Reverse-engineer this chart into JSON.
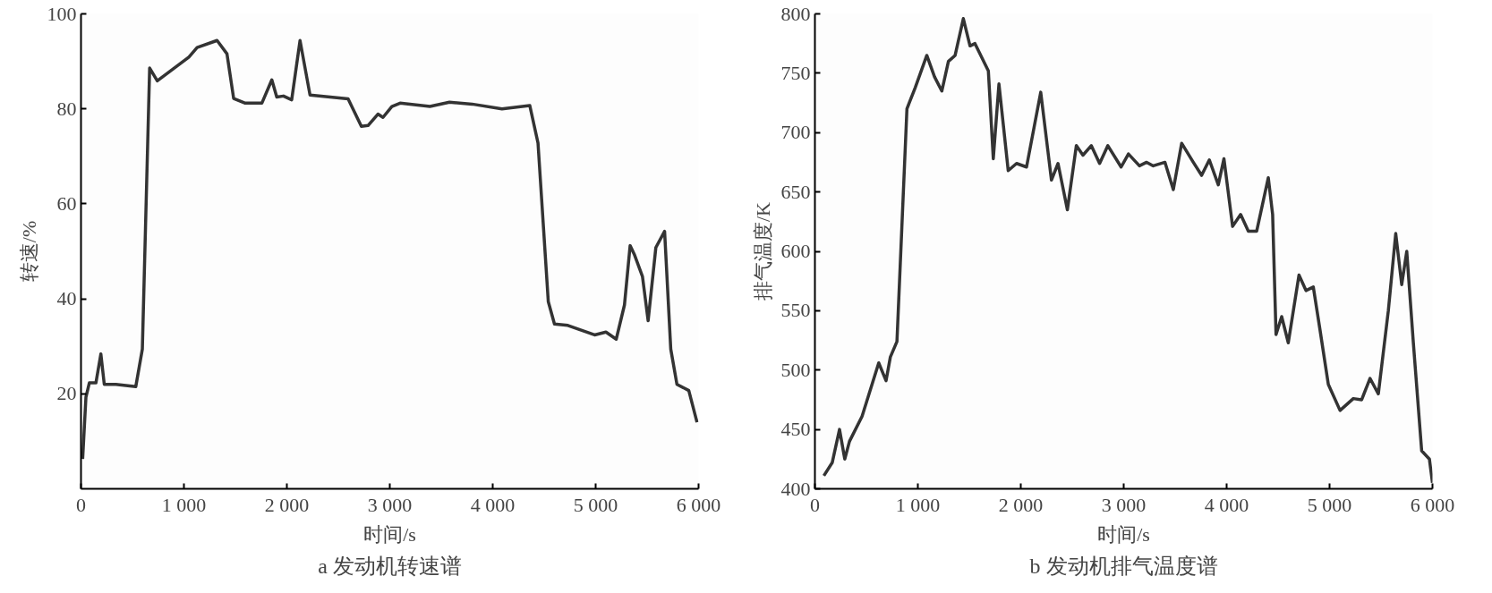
{
  "chart_data": [
    {
      "type": "line",
      "xlabel": "时间/s",
      "ylabel": "转速/%",
      "annotations": [
        "a 发动机转速谱"
      ],
      "xlim": [
        0,
        6000
      ],
      "ylim": [
        0,
        100
      ],
      "xticks": [
        0,
        {
          "value": 1000,
          "label": "1 000"
        },
        {
          "value": 2000,
          "label": "2 000"
        },
        {
          "value": 3000,
          "label": "3 000"
        },
        {
          "value": 4000,
          "label": "4 000"
        },
        {
          "value": 5000,
          "label": "5 000"
        },
        {
          "value": 6000,
          "label": "6 000"
        }
      ],
      "yticks": [
        20,
        40,
        60,
        80,
        100
      ],
      "grid": false,
      "marker": "none",
      "line_style": "solid",
      "series": [
        {
          "color": "#333333",
          "x": [
            16,
            48,
            81,
            145,
            193,
            226,
            339,
            532,
            596,
            667,
            741,
            1048,
            1128,
            1322,
            1418,
            1483,
            1596,
            1757,
            1854,
            1902,
            1967,
            2047,
            2128,
            2225,
            2595,
            2724,
            2789,
            2885,
            2934,
            3020,
            3100,
            3390,
            3580,
            3800,
            4090,
            4360,
            4440,
            4540,
            4600,
            4730,
            4990,
            5100,
            5200,
            5280,
            5335,
            5375,
            5455,
            5510,
            5585,
            5670,
            5730,
            5790,
            5905,
            5985
          ],
          "values": [
            6.3,
            19.3,
            22.3,
            22.3,
            28.4,
            22,
            22,
            21.5,
            29.4,
            88.6,
            85.9,
            90.9,
            92.9,
            94.4,
            91.6,
            82.2,
            81.2,
            81.2,
            86.1,
            82.5,
            82.7,
            81.9,
            94.4,
            82.9,
            82.1,
            76.3,
            76.5,
            78.9,
            78.2,
            80.5,
            81.2,
            80.5,
            81.4,
            81.0,
            80.0,
            80.7,
            72.8,
            39.4,
            34.7,
            34.4,
            32.4,
            33.0,
            31.5,
            38.7,
            51.2,
            49.4,
            44.7,
            35.4,
            50.8,
            54.2,
            29.4,
            22.0,
            20.7,
            14.0
          ]
        }
      ]
    },
    {
      "type": "line",
      "xlabel": "时间/s",
      "ylabel": "排气温度/K",
      "annotations": [
        "b 发动机排气温度谱"
      ],
      "xlim": [
        0,
        6000
      ],
      "ylim": [
        400,
        800
      ],
      "xticks": [
        0,
        {
          "value": 1000,
          "label": "1 000"
        },
        {
          "value": 2000,
          "label": "2 000"
        },
        {
          "value": 3000,
          "label": "3 000"
        },
        {
          "value": 4000,
          "label": "4 000"
        },
        {
          "value": 5000,
          "label": "5 000"
        },
        {
          "value": 6000,
          "label": "6 000"
        }
      ],
      "yticks": [
        400,
        450,
        500,
        550,
        600,
        650,
        700,
        750,
        800
      ],
      "grid": false,
      "marker": "none",
      "line_style": "solid",
      "series": [
        {
          "color": "#333333",
          "x": [
            87,
            168,
            239,
            290,
            336,
            458,
            620,
            691,
            733,
            797,
            894,
            975,
            1087,
            1162,
            1233,
            1297,
            1362,
            1442,
            1507,
            1555,
            1685,
            1733,
            1788,
            1878,
            1959,
            2056,
            2194,
            2298,
            2362,
            2453,
            2540,
            2604,
            2685,
            2766,
            2846,
            2975,
            3046,
            3153,
            3223,
            3287,
            3401,
            3482,
            3563,
            3676,
            3757,
            3832,
            3919,
            3974,
            4058,
            4136,
            4211,
            4292,
            4405,
            4447,
            4480,
            4535,
            4599,
            4703,
            4771,
            4842,
            4907,
            4988,
            5102,
            5231,
            5312,
            5393,
            5474,
            5571,
            5643,
            5701,
            5750,
            5814,
            5895,
            5970,
            6000
          ],
          "values": [
            411,
            422,
            450,
            425,
            440,
            461,
            506,
            491,
            511,
            524,
            720,
            738,
            765,
            747,
            735,
            760,
            765,
            796,
            773,
            775,
            752,
            678,
            741,
            668,
            674,
            671,
            734,
            660,
            674,
            635,
            689,
            681,
            689,
            674,
            689,
            671,
            682,
            672,
            675,
            672,
            675,
            652,
            691,
            675,
            664,
            677,
            656,
            678,
            621,
            631,
            617,
            617,
            662,
            631,
            530,
            545,
            523,
            580,
            567,
            570,
            534,
            488,
            466,
            476,
            475,
            493,
            480,
            550,
            615,
            572,
            600,
            523,
            432,
            425,
            405
          ]
        }
      ]
    }
  ]
}
